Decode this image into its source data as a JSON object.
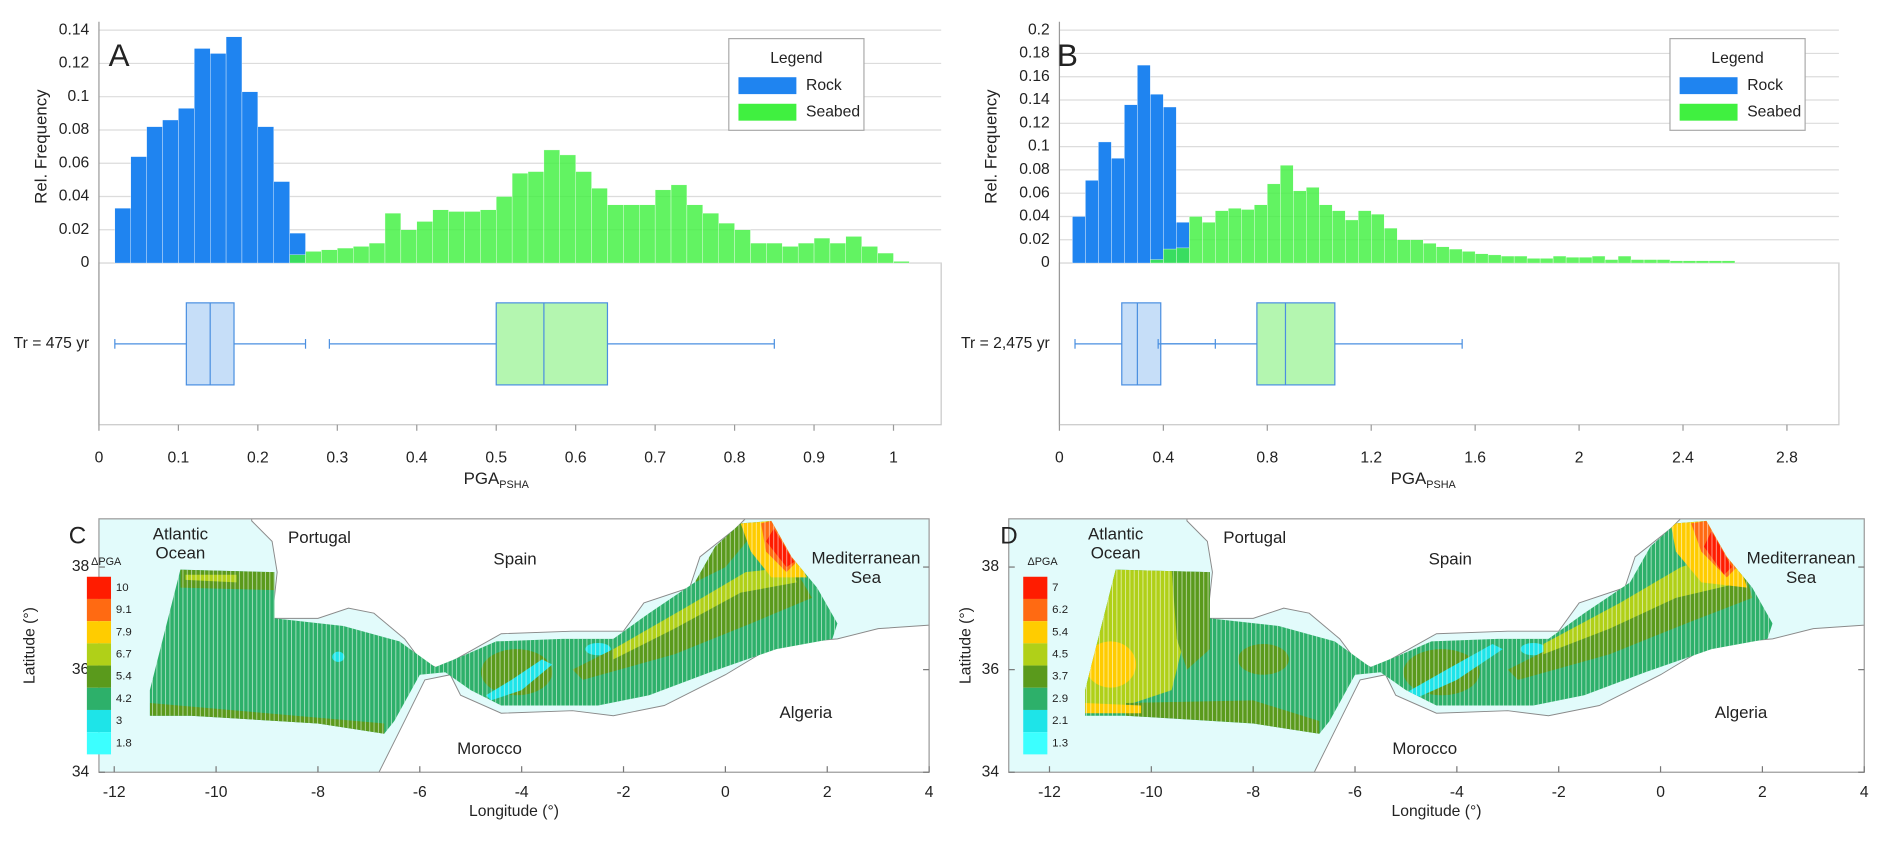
{
  "chart_data": [
    {
      "type": "histogram",
      "panel": "A",
      "ylabel": "Rel. Frequency",
      "xlabel": "PGA",
      "xlabel_sub": "PSHA",
      "xlim": [
        0,
        1.06
      ],
      "ylim": [
        0,
        0.14
      ],
      "xticks": [
        0,
        0.1,
        0.2,
        0.3,
        0.4,
        0.5,
        0.6,
        0.7,
        0.8,
        0.9,
        1
      ],
      "yticks": [
        0,
        0.02,
        0.04,
        0.06,
        0.08,
        0.1,
        0.12,
        0.14
      ],
      "grid": true,
      "legend_title": "Legend",
      "legend": "upper right",
      "series": [
        {
          "name": "Rock",
          "color": "#1f84f0",
          "bins": [
            0.02,
            0.04,
            0.06,
            0.08,
            0.1,
            0.12,
            0.14,
            0.16,
            0.18,
            0.2,
            0.22,
            0.24,
            0.26
          ],
          "values": [
            0.033,
            0.064,
            0.082,
            0.086,
            0.093,
            0.129,
            0.126,
            0.136,
            0.103,
            0.082,
            0.049,
            0.018
          ]
        },
        {
          "name": "Seabed",
          "color": "#40f040",
          "bins": [
            0.24,
            0.26,
            0.28,
            0.3,
            0.32,
            0.34,
            0.36,
            0.38,
            0.4,
            0.42,
            0.44,
            0.46,
            0.48,
            0.5,
            0.52,
            0.54,
            0.56,
            0.58,
            0.6,
            0.62,
            0.64,
            0.66,
            0.68,
            0.7,
            0.72,
            0.74,
            0.76,
            0.78,
            0.8,
            0.82,
            0.84,
            0.86,
            0.88,
            0.9,
            0.92,
            0.94,
            0.96,
            0.98,
            1,
            1.02
          ],
          "values": [
            0.005,
            0.007,
            0.008,
            0.009,
            0.01,
            0.012,
            0.03,
            0.02,
            0.025,
            0.032,
            0.031,
            0.031,
            0.032,
            0.04,
            0.054,
            0.055,
            0.068,
            0.065,
            0.055,
            0.045,
            0.035,
            0.035,
            0.035,
            0.044,
            0.047,
            0.035,
            0.03,
            0.024,
            0.02,
            0.012,
            0.012,
            0.01,
            0.012,
            0.015,
            0.012,
            0.016,
            0.01,
            0.006,
            0.001
          ]
        }
      ],
      "boxplot": {
        "label": "Tr = 475 yr",
        "edge": "#4a8fe0",
        "boxes": [
          {
            "whislo": 0.02,
            "q1": 0.11,
            "med": 0.14,
            "q3": 0.17,
            "whishi": 0.26,
            "face": "#c6def8"
          },
          {
            "whislo": 0.29,
            "q1": 0.5,
            "med": 0.56,
            "q3": 0.64,
            "whishi": 0.85,
            "face": "#b4f6b0"
          }
        ]
      }
    },
    {
      "type": "histogram",
      "panel": "B",
      "ylabel": "Rel. Frequency",
      "xlabel": "PGA",
      "xlabel_sub": "PSHA",
      "xlim": [
        0,
        3
      ],
      "ylim": [
        0,
        0.2
      ],
      "xticks": [
        0,
        0.4,
        0.8,
        1.2,
        1.6,
        2,
        2.4,
        2.8
      ],
      "yticks": [
        0,
        0.02,
        0.04,
        0.06,
        0.08,
        0.1,
        0.12,
        0.14,
        0.16,
        0.18,
        0.2
      ],
      "grid": true,
      "legend_title": "Legend",
      "legend": "upper right",
      "series": [
        {
          "name": "Rock",
          "color": "#1f84f0",
          "bins": [
            0.05,
            0.1,
            0.15,
            0.2,
            0.25,
            0.3,
            0.35,
            0.4,
            0.45,
            0.5
          ],
          "values": [
            0.04,
            0.071,
            0.104,
            0.09,
            0.136,
            0.17,
            0.145,
            0.134,
            0.035
          ]
        },
        {
          "name": "Seabed",
          "color": "#40f040",
          "bins": [
            0.35,
            0.4,
            0.45,
            0.5,
            0.55,
            0.6,
            0.65,
            0.7,
            0.75,
            0.8,
            0.85,
            0.9,
            0.95,
            1,
            1.05,
            1.1,
            1.15,
            1.2,
            1.25,
            1.3,
            1.35,
            1.4,
            1.45,
            1.5,
            1.55,
            1.6,
            1.65,
            1.7,
            1.75,
            1.8,
            1.85,
            1.9,
            1.95,
            2,
            2.05,
            2.1,
            2.15,
            2.2,
            2.25,
            2.3,
            2.35,
            2.4,
            2.45,
            2.5,
            2.55,
            2.6
          ],
          "values": [
            0.003,
            0.012,
            0.013,
            0.04,
            0.035,
            0.045,
            0.047,
            0.046,
            0.05,
            0.068,
            0.084,
            0.062,
            0.065,
            0.05,
            0.045,
            0.037,
            0.045,
            0.042,
            0.03,
            0.02,
            0.02,
            0.017,
            0.014,
            0.012,
            0.01,
            0.008,
            0.007,
            0.006,
            0.006,
            0.004,
            0.004,
            0.006,
            0.005,
            0.005,
            0.006,
            0.003,
            0.006,
            0.003,
            0.003,
            0.003,
            0.002,
            0.002,
            0.002,
            0.002,
            0.002
          ]
        }
      ],
      "boxplot": {
        "label": "Tr = 2,475 yr",
        "edge": "#4a8fe0",
        "boxes": [
          {
            "whislo": 0.06,
            "q1": 0.24,
            "med": 0.3,
            "q3": 0.39,
            "whishi": 0.6,
            "face": "#c6def8"
          },
          {
            "whislo": 0.38,
            "q1": 0.76,
            "med": 0.87,
            "q3": 1.06,
            "whishi": 1.55,
            "face": "#b4f6b0"
          }
        ]
      }
    },
    {
      "type": "map",
      "panel": "C",
      "xlabel": "Longitude (°)",
      "ylabel": "Latitude (°)",
      "xlim": [
        -12.3,
        4
      ],
      "ylim": [
        34,
        38.94
      ],
      "xticks": [
        -12,
        -10,
        -8,
        -6,
        -4,
        -2,
        0,
        2,
        4
      ],
      "yticks": [
        34,
        36,
        38
      ],
      "sea_color": "#e2fbfb",
      "land_color": "#ffffff",
      "places": [
        "Atlantic Ocean",
        "Portugal",
        "Spain",
        "Mediterranean Sea",
        "Morocco",
        "Algeria"
      ],
      "colorbar": {
        "title": "ΔPGA",
        "labels": [
          10,
          9.1,
          7.9,
          6.7,
          5.4,
          4.2,
          3,
          1.8
        ],
        "colors": [
          "#ff1c00",
          "#ff6a12",
          "#ffcc00",
          "#b0d018",
          "#5a9a1c",
          "#2db06a",
          "#1ee4e8",
          "#3cffff"
        ]
      }
    },
    {
      "type": "map",
      "panel": "D",
      "xlabel": "Longitude (°)",
      "ylabel": "Latitude (°)",
      "xlim": [
        -12.8,
        4
      ],
      "ylim": [
        34,
        38.94
      ],
      "xticks": [
        -12,
        -10,
        -8,
        -6,
        -4,
        -2,
        0,
        2,
        4
      ],
      "yticks": [
        34,
        36,
        38
      ],
      "sea_color": "#e2fbfb",
      "land_color": "#ffffff",
      "places": [
        "Atlantic Ocean",
        "Portugal",
        "Spain",
        "Mediterranean Sea",
        "Morocco",
        "Algeria"
      ],
      "colorbar": {
        "title": "ΔPGA",
        "labels": [
          7,
          6.2,
          5.4,
          4.5,
          3.7,
          2.9,
          2.1,
          1.3
        ],
        "colors": [
          "#ff1c00",
          "#ff6a12",
          "#ffcc00",
          "#b0d018",
          "#5a9a1c",
          "#2db06a",
          "#1ee4e8",
          "#3cffff"
        ]
      }
    }
  ]
}
